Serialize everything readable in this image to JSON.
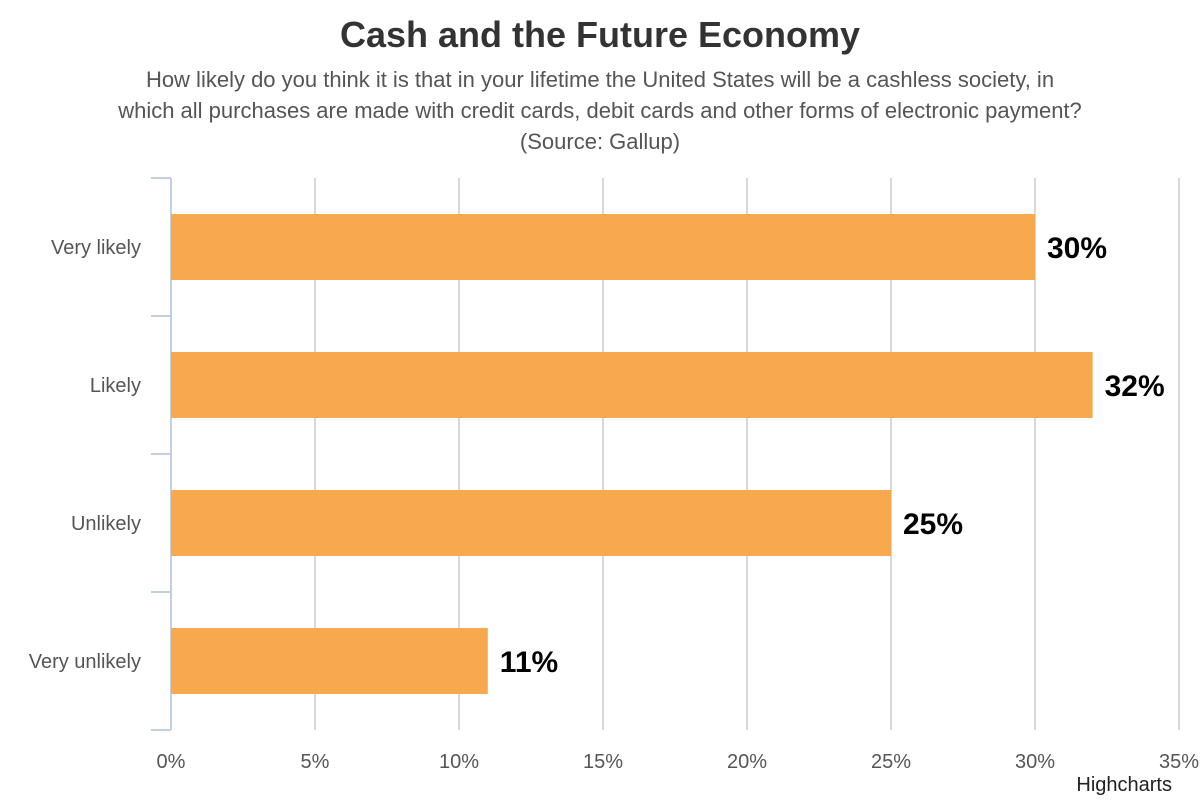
{
  "chart_data": {
    "type": "bar",
    "orientation": "horizontal",
    "title": "Cash and the Future Economy",
    "subtitle_lines": [
      "How likely do you think it is that in your lifetime the United States will be a cashless society, in",
      "which all purchases are made with credit cards, debit cards and other forms of electronic payment?",
      "(Source: Gallup)"
    ],
    "categories": [
      "Very likely",
      "Likely",
      "Unlikely",
      "Very unlikely"
    ],
    "values": [
      30,
      32,
      25,
      11
    ],
    "data_labels": [
      "30%",
      "32%",
      "25%",
      "11%"
    ],
    "xlim": [
      0,
      35
    ],
    "x_ticks": [
      0,
      5,
      10,
      15,
      20,
      25,
      30,
      35
    ],
    "x_tick_labels": [
      "0%",
      "5%",
      "10%",
      "15%",
      "20%",
      "25%",
      "30%",
      "35%"
    ],
    "grid": true,
    "bar_color": "#F8A94F",
    "grid_color": "#D8D8D8",
    "axis_color": "#C0D0E0",
    "credits": "Highcharts"
  }
}
